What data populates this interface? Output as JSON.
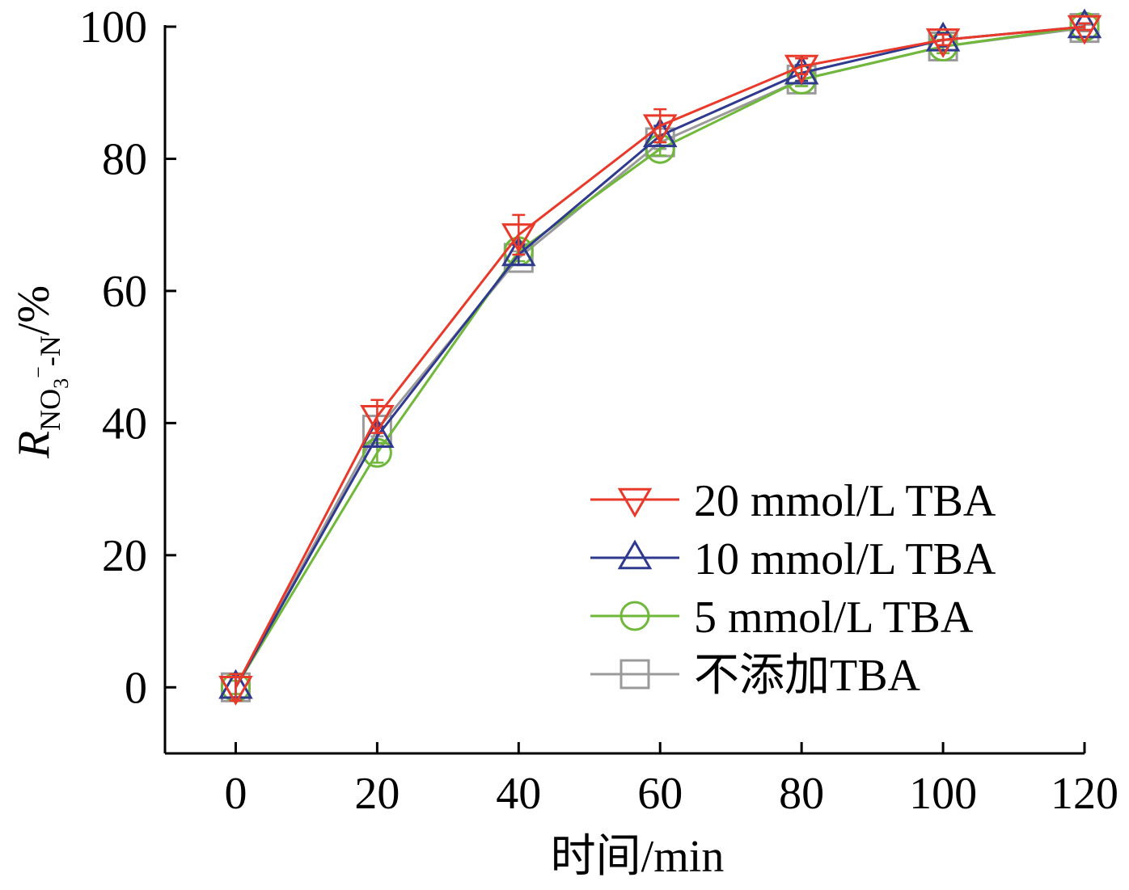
{
  "chart_data": {
    "type": "line",
    "xlabel": "时间/min",
    "ylabel": {
      "symbol": "R",
      "subscript_main": "NO",
      "subscript_index": "3",
      "subscript_charge": "−",
      "subscript_tail": "-N",
      "unit": "/%"
    },
    "xlim": [
      -10,
      120
    ],
    "ylim": [
      -10,
      100
    ],
    "x_ticks": [
      0,
      20,
      40,
      60,
      80,
      100,
      120
    ],
    "y_ticks": [
      0,
      20,
      40,
      60,
      80,
      100
    ],
    "x_tick_labels": [
      "0",
      "20",
      "40",
      "60",
      "80",
      "100",
      "120"
    ],
    "y_tick_labels": [
      "0",
      "20",
      "40",
      "60",
      "80",
      "100"
    ],
    "grid": false,
    "legend_position": "bottom-right",
    "x": [
      0,
      20,
      40,
      60,
      80,
      100,
      120
    ],
    "series": [
      {
        "name": "20 mmol/L TBA",
        "color": "#e8392a",
        "marker": "triangle-down",
        "values": [
          0,
          41,
          68.5,
          85,
          94,
          98,
          100
        ],
        "errors": [
          2,
          2.5,
          3,
          2.5,
          1.2,
          0.8,
          0.5
        ]
      },
      {
        "name": "10 mmol/L TBA",
        "color": "#2f3a8f",
        "marker": "triangle-up",
        "values": [
          0,
          38,
          65.5,
          83.5,
          93,
          98,
          100
        ],
        "errors": [
          1.5,
          1.5,
          1.5,
          1.5,
          1.2,
          1,
          0.5
        ]
      },
      {
        "name": "5 mmol/L TBA",
        "color": "#6fb83a",
        "marker": "circle",
        "values": [
          0,
          35.5,
          66,
          81.5,
          92,
          97,
          100
        ],
        "errors": [
          1,
          1.5,
          1.5,
          1,
          1,
          1,
          0.5
        ]
      },
      {
        "name": "不添加TBA",
        "color": "#9a9a9a",
        "marker": "square",
        "values": [
          0,
          39,
          65,
          82.5,
          92,
          97,
          99.8
        ],
        "errors": [
          1,
          1,
          1,
          1,
          1,
          1,
          0.5
        ]
      }
    ]
  }
}
